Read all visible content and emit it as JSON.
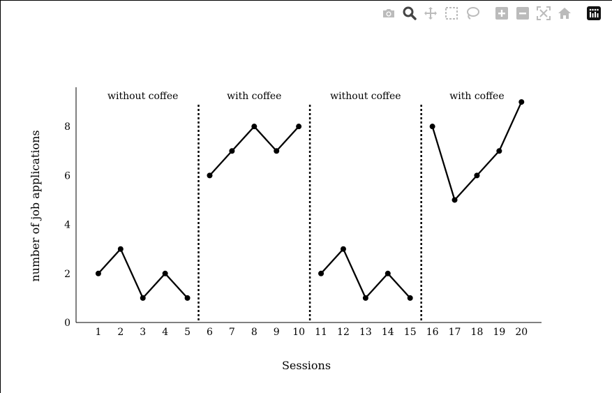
{
  "toolbar": {
    "icons": [
      "camera-icon",
      "zoom-icon",
      "pan-icon",
      "box-select-icon",
      "lasso-select-icon",
      "zoom-in-icon",
      "zoom-out-icon",
      "autoscale-icon",
      "reset-axes-icon",
      "plotly-logo-icon"
    ],
    "icon_color": "#bbbbbb",
    "active_icon_color": "#444444"
  },
  "chart_data": {
    "type": "line",
    "xlabel": "Sessions",
    "ylabel": "number of job applications",
    "xlim": [
      0,
      20.9
    ],
    "ylim": [
      0,
      9.6
    ],
    "x_ticks": [
      1,
      2,
      3,
      4,
      5,
      6,
      7,
      8,
      9,
      10,
      11,
      12,
      13,
      14,
      15,
      16,
      17,
      18,
      19,
      20
    ],
    "y_ticks": [
      0,
      2,
      4,
      6,
      8
    ],
    "phases": [
      {
        "label": "without coffee",
        "x": [
          1,
          2,
          3,
          4,
          5
        ],
        "y": [
          2,
          3,
          1,
          2,
          1
        ]
      },
      {
        "label": "with coffee",
        "x": [
          6,
          7,
          8,
          9,
          10
        ],
        "y": [
          6,
          7,
          8,
          7,
          8
        ]
      },
      {
        "label": "without coffee",
        "x": [
          11,
          12,
          13,
          14,
          15
        ],
        "y": [
          2,
          3,
          1,
          2,
          1
        ]
      },
      {
        "label": "with coffee",
        "x": [
          16,
          17,
          18,
          19,
          20
        ],
        "y": [
          8,
          5,
          6,
          7,
          9
        ]
      }
    ],
    "phase_changes": [
      5.5,
      10.5,
      15.5
    ],
    "phase_change_style": "dotted",
    "line_color": "#000000",
    "grid": false,
    "legend": "none"
  }
}
